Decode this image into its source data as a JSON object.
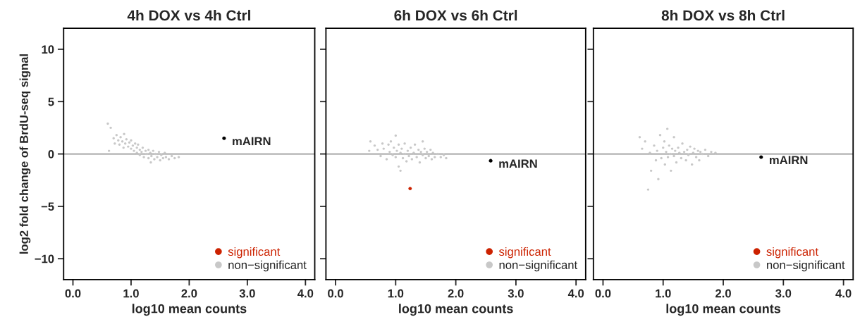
{
  "chart_data": [
    {
      "type": "scatter",
      "title": "4h DOX vs 4h Ctrl",
      "xlabel": "log10 mean counts",
      "ylabel": "log2 fold change of BrdU-seq signal",
      "xlim": [
        -0.16,
        4.16
      ],
      "ylim": [
        -12,
        12
      ],
      "xticks": [
        {
          "value": 0,
          "label": "0.0"
        },
        {
          "value": 1,
          "label": "1.0"
        },
        {
          "value": 2,
          "label": "2.0"
        },
        {
          "value": 3,
          "label": "3.0"
        },
        {
          "value": 4,
          "label": "4.0"
        }
      ],
      "yticks": [
        -10,
        -5,
        0,
        5,
        10
      ],
      "grid": false,
      "legend": "bottom right",
      "marker": "circle",
      "ref_lines": [
        {
          "axis": "y",
          "value": 0,
          "color": "#999999"
        }
      ],
      "annotations": [
        {
          "text": "mAIRN",
          "x": 2.6,
          "y": 1.5
        }
      ],
      "series": [
        {
          "name": "significant",
          "color": "#cc2200"
        },
        {
          "name": "non−significant",
          "color": "#c8c8c8",
          "x": [
            0.6,
            0.65,
            0.62,
            0.7,
            0.72,
            0.75,
            0.78,
            0.8,
            0.82,
            0.85,
            0.87,
            0.88,
            0.9,
            0.92,
            0.95,
            0.97,
            1.0,
            1.0,
            1.03,
            1.05,
            1.07,
            1.1,
            1.1,
            1.12,
            1.15,
            1.15,
            1.18,
            1.2,
            1.22,
            1.25,
            1.27,
            1.3,
            1.3,
            1.33,
            1.35,
            1.38,
            1.4,
            1.42,
            1.45,
            1.48,
            1.5,
            1.52,
            1.55,
            1.58,
            1.6,
            1.65,
            1.7,
            1.75,
            1.82,
            1.34
          ],
          "values": [
            2.9,
            2.5,
            0.3,
            1.5,
            1.0,
            1.8,
            1.3,
            0.9,
            1.6,
            1.2,
            0.6,
            1.9,
            1.0,
            1.4,
            0.7,
            1.1,
            0.5,
            1.3,
            0.8,
            0.3,
            1.0,
            0.6,
            0.1,
            0.9,
            0.4,
            -0.1,
            0.2,
            0.6,
            -0.3,
            0.3,
            0.0,
            0.4,
            -0.4,
            0.1,
            -0.2,
            0.3,
            -0.5,
            0.0,
            -0.3,
            0.2,
            -0.6,
            -0.1,
            -0.4,
            0.1,
            -0.3,
            -0.5,
            -0.2,
            -0.4,
            -0.3,
            -0.8
          ]
        },
        {
          "color": "#000000",
          "x": [
            2.6
          ],
          "values": [
            1.5
          ]
        }
      ]
    },
    {
      "type": "scatter",
      "title": "6h DOX vs 6h Ctrl",
      "xlabel": "log10 mean counts",
      "xlim": [
        -0.16,
        4.16
      ],
      "ylim": [
        -12,
        12
      ],
      "tick_labels": "x",
      "xticks": [
        {
          "value": 0,
          "label": "0.0"
        },
        {
          "value": 1,
          "label": "1.0"
        },
        {
          "value": 2,
          "label": "2.0"
        },
        {
          "value": 3,
          "label": "3.0"
        },
        {
          "value": 4,
          "label": "4.0"
        }
      ],
      "yticks": [
        -10,
        -5,
        0,
        5,
        10
      ],
      "grid": false,
      "legend": "bottom right",
      "marker": "circle",
      "ref_lines": [
        {
          "axis": "y",
          "value": 0,
          "color": "#999999"
        }
      ],
      "annotations": [
        {
          "text": "mAIRN",
          "x": 2.58,
          "y": -0.65
        }
      ],
      "series": [
        {
          "name": "significant",
          "color": "#cc2200",
          "x": [
            1.24
          ],
          "values": [
            -3.3
          ]
        },
        {
          "name": "non−significant",
          "color": "#c8c8c8",
          "x": [
            0.56,
            0.58,
            0.65,
            0.7,
            0.75,
            0.78,
            0.8,
            0.85,
            0.88,
            0.9,
            0.92,
            0.95,
            0.97,
            1.0,
            1.0,
            1.02,
            1.05,
            1.05,
            1.08,
            1.08,
            1.1,
            1.12,
            1.15,
            1.15,
            1.18,
            1.2,
            1.22,
            1.25,
            1.27,
            1.3,
            1.32,
            1.35,
            1.38,
            1.4,
            1.42,
            1.45,
            1.45,
            1.48,
            1.5,
            1.52,
            1.55,
            1.58,
            1.6,
            1.62,
            1.65,
            1.7,
            1.75,
            1.8,
            1.84
          ],
          "values": [
            0.3,
            1.2,
            0.8,
            0.4,
            -0.2,
            1.0,
            0.5,
            -0.5,
            0.9,
            0.2,
            1.2,
            -0.1,
            0.6,
            1.75,
            -0.3,
            0.3,
            -1.2,
            0.9,
            -1.6,
            0.1,
            0.5,
            -0.4,
            1.0,
            0.0,
            -0.7,
            0.3,
            -0.2,
            0.6,
            -0.5,
            0.1,
            0.9,
            -0.3,
            0.4,
            -0.8,
            0.2,
            1.2,
            -0.1,
            0.5,
            -0.4,
            0.2,
            -0.2,
            0.4,
            -0.5,
            0.1,
            -0.3,
            0.0,
            -0.3,
            -0.1,
            -0.4
          ]
        },
        {
          "color": "#000000",
          "x": [
            2.58
          ],
          "values": [
            -0.65
          ]
        }
      ]
    },
    {
      "type": "scatter",
      "title": "8h DOX vs 8h Ctrl",
      "xlabel": "log10 mean counts",
      "xlim": [
        -0.16,
        4.16
      ],
      "ylim": [
        -12,
        12
      ],
      "tick_labels": "x",
      "xticks": [
        {
          "value": 0,
          "label": "0.0"
        },
        {
          "value": 1,
          "label": "1.0"
        },
        {
          "value": 2,
          "label": "2.0"
        },
        {
          "value": 3,
          "label": "3.0"
        },
        {
          "value": 4,
          "label": "4.0"
        }
      ],
      "yticks": [
        -10,
        -5,
        0,
        5,
        10
      ],
      "grid": false,
      "legend": "bottom right",
      "marker": "circle",
      "ref_lines": [
        {
          "axis": "y",
          "value": 0,
          "color": "#999999"
        }
      ],
      "annotations": [
        {
          "text": "mAIRN",
          "x": 2.63,
          "y": -0.3
        }
      ],
      "series": [
        {
          "name": "significant",
          "color": "#cc2200"
        },
        {
          "name": "non−significant",
          "color": "#c8c8c8",
          "x": [
            0.61,
            0.65,
            0.7,
            0.75,
            0.78,
            0.8,
            0.85,
            0.88,
            0.9,
            0.92,
            0.95,
            0.97,
            1.0,
            1.02,
            1.03,
            1.05,
            1.07,
            1.08,
            1.1,
            1.12,
            1.13,
            1.15,
            1.18,
            1.18,
            1.2,
            1.22,
            1.25,
            1.27,
            1.3,
            1.32,
            1.35,
            1.38,
            1.4,
            1.42,
            1.45,
            1.48,
            1.5,
            1.52,
            1.55,
            1.58,
            1.6,
            1.62,
            1.65,
            1.7,
            1.75,
            1.8,
            1.87
          ],
          "values": [
            1.6,
            0.5,
            1.2,
            -3.4,
            0.1,
            -1.6,
            0.8,
            -0.6,
            0.3,
            -2.4,
            1.8,
            -0.4,
            0.6,
            1.2,
            -1.0,
            0.2,
            2.4,
            -0.3,
            0.8,
            0.0,
            -1.6,
            0.5,
            1.6,
            -0.2,
            0.3,
            -0.8,
            0.6,
            0.1,
            -0.4,
            1.0,
            0.2,
            -0.6,
            0.4,
            -0.1,
            0.7,
            -1.0,
            0.1,
            0.5,
            -0.3,
            0.3,
            -0.6,
            0.2,
            0.0,
            0.4,
            -0.2,
            0.2,
            0.1
          ]
        },
        {
          "color": "#000000",
          "x": [
            2.63
          ],
          "values": [
            -0.3
          ]
        }
      ]
    }
  ]
}
